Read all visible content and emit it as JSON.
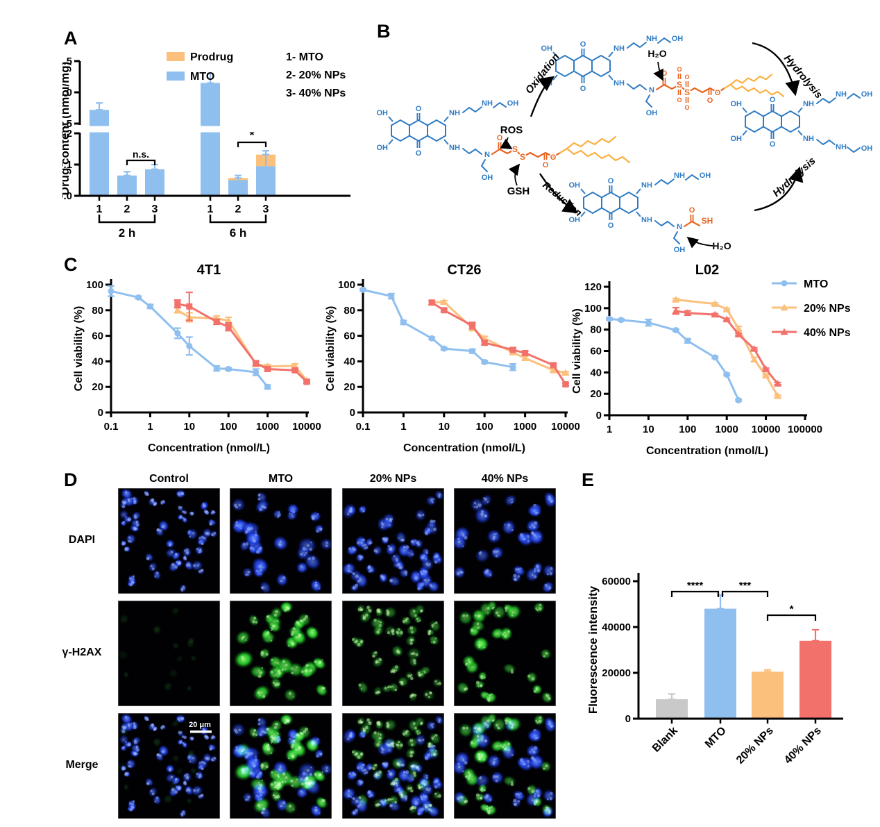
{
  "panels": {
    "a": "A",
    "b": "B",
    "c": "C",
    "d": "D",
    "e": "E"
  },
  "chart_data": [
    {
      "id": "drug_content",
      "type": "bar",
      "ylabel": "Drug content (nmol/mg)",
      "axis_break": {
        "lower": [
          0.0,
          0.2
        ],
        "upper": [
          0.5,
          1.5
        ]
      },
      "yticks_upper": [
        "1.5",
        "1.0",
        "0.5"
      ],
      "yticks_lower": [
        "0.2",
        "0.1",
        "0.0"
      ],
      "legend": [
        {
          "label": "Prodrug",
          "color": "#FBC07C"
        },
        {
          "label": "MTO",
          "color": "#8FBFEF"
        }
      ],
      "key": [
        "1- MTO",
        "2- 20% NPs",
        "3- 40% NPs"
      ],
      "groups": [
        {
          "label": "2 h",
          "bars": [
            {
              "x": "1",
              "mto": 0.72,
              "prodrug": 0,
              "err": 0.11
            },
            {
              "x": "2",
              "mto": 0.065,
              "prodrug": 0,
              "err": 0.012
            },
            {
              "x": "3",
              "mto": 0.085,
              "prodrug": 0,
              "err": 0.015
            }
          ],
          "sig": {
            "from": 1,
            "to": 2,
            "label": "n.s."
          }
        },
        {
          "label": "6 h",
          "bars": [
            {
              "x": "1",
              "mto": 1.15,
              "prodrug": 0,
              "err": 0.15
            },
            {
              "x": "2",
              "mto": 0.05,
              "prodrug": 0.007,
              "err": 0.008
            },
            {
              "x": "3",
              "mto": 0.095,
              "prodrug": 0.037,
              "err": 0.012
            }
          ],
          "sig": {
            "from": 1,
            "to": 2,
            "label": "*"
          }
        }
      ]
    },
    {
      "id": "viability_4T1",
      "type": "line",
      "title": "4T1",
      "xlabel": "Concentration (nmol/L)",
      "ylabel": "Cell viability (%)",
      "xlog": true,
      "xlim": [
        0.1,
        10000
      ],
      "ylim": [
        0,
        100
      ],
      "xticks": [
        "0.1",
        "1",
        "10",
        "100",
        "1000",
        "10000"
      ],
      "yticks": [
        0,
        20,
        40,
        60,
        80,
        100
      ],
      "series": [
        {
          "name": "MTO",
          "color": "#8FBFEF",
          "marker": "circle",
          "x": [
            0.1,
            0.5,
            1,
            5,
            10,
            50,
            100,
            500,
            1000
          ],
          "y": [
            95,
            90,
            83,
            62,
            52,
            34.5,
            34,
            31.5,
            20
          ],
          "err": [
            4,
            1,
            1.5,
            4,
            7,
            2,
            1,
            2.5,
            1.5
          ]
        },
        {
          "name": "20% NPs",
          "color": "#FBC07C",
          "marker": "triangle",
          "x": [
            5,
            10,
            50,
            100,
            500,
            1000,
            5000,
            10000
          ],
          "y": [
            80,
            74.5,
            73.5,
            72,
            38,
            36,
            36.5,
            25
          ],
          "err": [
            2,
            3.5,
            2,
            2.5,
            2,
            1.5,
            1.5,
            1
          ]
        },
        {
          "name": "40% NPs",
          "color": "#F3716B",
          "marker": "square",
          "x": [
            5,
            10,
            50,
            100,
            500,
            1000,
            5000,
            10000
          ],
          "y": [
            85,
            83,
            71,
            67,
            38.5,
            34,
            33,
            24
          ],
          "err": [
            3,
            11,
            2,
            3,
            2,
            1.5,
            1.5,
            1
          ]
        }
      ]
    },
    {
      "id": "viability_CT26",
      "type": "line",
      "title": "CT26",
      "xlabel": "Concentration (nmol/L)",
      "ylabel": "Cell viability (%)",
      "xlog": true,
      "xlim": [
        0.1,
        10000
      ],
      "ylim": [
        0,
        100
      ],
      "xticks": [
        "0.1",
        "1",
        "10",
        "100",
        "1000",
        "10000"
      ],
      "yticks": [
        0,
        20,
        40,
        60,
        80,
        100
      ],
      "series": [
        {
          "name": "MTO",
          "color": "#8FBFEF",
          "marker": "circle",
          "x": [
            0.1,
            0.5,
            1,
            5,
            10,
            50,
            100,
            500
          ],
          "y": [
            96,
            91,
            70.5,
            58,
            50,
            48,
            39.5,
            35.5
          ],
          "err": [
            1,
            2,
            1.5,
            1,
            1,
            1.5,
            1,
            2.5
          ]
        },
        {
          "name": "20% NPs",
          "color": "#FBC07C",
          "marker": "triangle",
          "x": [
            5,
            10,
            50,
            100,
            500,
            1000,
            5000,
            10000
          ],
          "y": [
            86,
            86.5,
            66,
            58,
            47,
            42.5,
            33,
            31
          ],
          "err": [
            1.5,
            1,
            2,
            1.5,
            1.5,
            1.5,
            1,
            1
          ]
        },
        {
          "name": "40% NPs",
          "color": "#F3716B",
          "marker": "square",
          "x": [
            5,
            10,
            50,
            100,
            500,
            1000,
            5000,
            10000
          ],
          "y": [
            86,
            80,
            68,
            54.5,
            49,
            46.5,
            37,
            22
          ],
          "err": [
            1.5,
            1,
            2.5,
            1.5,
            1.5,
            1.5,
            1,
            1
          ]
        }
      ]
    },
    {
      "id": "viability_L02",
      "type": "line",
      "title": "L02",
      "xlabel": "Concentration (nmol/L)",
      "ylabel": "Cell viability (%)",
      "xlog": true,
      "xlim": [
        1,
        100000
      ],
      "ylim": [
        0,
        120
      ],
      "xticks": [
        "1",
        "10",
        "100",
        "1000",
        "10000",
        "100000"
      ],
      "yticks": [
        0,
        20,
        40,
        60,
        80,
        100,
        120
      ],
      "legend": true,
      "series": [
        {
          "name": "MTO",
          "color": "#8FBFEF",
          "marker": "circle",
          "x": [
            1,
            2,
            10,
            50,
            100,
            500,
            1000,
            2000
          ],
          "y": [
            90,
            89,
            86.5,
            79.5,
            69.5,
            54,
            38,
            14
          ],
          "err": [
            1,
            1,
            3,
            1,
            2,
            1,
            1,
            1
          ]
        },
        {
          "name": "20% NPs",
          "color": "#FBC07C",
          "marker": "triangle",
          "x": [
            50,
            500,
            1000,
            2000,
            5000,
            10000,
            20000
          ],
          "y": [
            108,
            104,
            99,
            81,
            52,
            37,
            18
          ],
          "err": [
            1,
            1,
            1,
            2,
            2,
            1,
            1
          ]
        },
        {
          "name": "40% NPs",
          "color": "#F3716B",
          "marker": "triangle",
          "x": [
            50,
            100,
            500,
            1000,
            2000,
            5000,
            10000,
            20000
          ],
          "y": [
            97.5,
            95.5,
            94,
            89.5,
            75.5,
            62,
            43,
            29.5
          ],
          "err": [
            3,
            2,
            1,
            1,
            1,
            1,
            1,
            1
          ]
        }
      ]
    },
    {
      "id": "fluorescence",
      "type": "bar",
      "ylabel": "Fluorescence intensity",
      "yticks": [
        "0",
        "20000",
        "40000",
        "60000"
      ],
      "ylim": [
        0,
        60000
      ],
      "categories": [
        "Blank",
        "MTO",
        "20% NPs",
        "40% NPs"
      ],
      "values": [
        8500,
        48000,
        20500,
        34000
      ],
      "errors": [
        2300,
        6000,
        800,
        4800
      ],
      "colors": [
        "#C9C9C9",
        "#8FBFEF",
        "#FBC07C",
        "#F3716B"
      ],
      "significance": [
        {
          "between": [
            "Blank",
            "MTO"
          ],
          "label": "****"
        },
        {
          "between": [
            "MTO",
            "20% NPs"
          ],
          "label": "***"
        },
        {
          "between": [
            "20% NPs",
            "40% NPs"
          ],
          "label": "*"
        }
      ]
    }
  ],
  "panelB": {
    "labels": {
      "oxidation": "Oxidation",
      "reduction": "Reduction",
      "hydrolysis_top": "Hydrolysis",
      "hydrolysis_bottom": "Hydrolysis",
      "ros": "ROS",
      "gsh": "GSH",
      "h2o_top": "H₂O",
      "h2o_bottom": "H₂O"
    },
    "atoms": {
      "oh": "OH",
      "o": "O",
      "nh": "NH",
      "n": "N",
      "s": "S",
      "sh": "SH"
    },
    "colors": {
      "core": "#2F7BC3",
      "linker": "#E8641F",
      "tail": "#FBB040"
    }
  },
  "microscopy": {
    "rows": [
      "DAPI",
      "γ-H2AX",
      "Merge"
    ],
    "scalebar": "20 μm",
    "columns": [
      {
        "label": "Control",
        "dapi": {
          "n": 55,
          "rmin": 4,
          "rmax": 8,
          "op": 0.92
        },
        "h2ax": {
          "n": 14,
          "rmin": 4,
          "rmax": 7,
          "op": 0.12
        }
      },
      {
        "label": "MTO",
        "dapi": {
          "n": 33,
          "rmin": 7,
          "rmax": 12,
          "op": 0.95
        },
        "h2ax": {
          "n": 32,
          "rmin": 8,
          "rmax": 13,
          "op": 0.95
        }
      },
      {
        "label": "20% NPs",
        "dapi": {
          "n": 47,
          "rmin": 6,
          "rmax": 10,
          "op": 0.92
        },
        "h2ax": {
          "n": 38,
          "rmin": 6,
          "rmax": 10,
          "op": 0.5
        }
      },
      {
        "label": "40% NPs",
        "dapi": {
          "n": 26,
          "rmin": 7,
          "rmax": 12,
          "op": 0.95
        },
        "h2ax": {
          "n": 26,
          "rmin": 7,
          "rmax": 11,
          "op": 0.85
        }
      }
    ]
  }
}
